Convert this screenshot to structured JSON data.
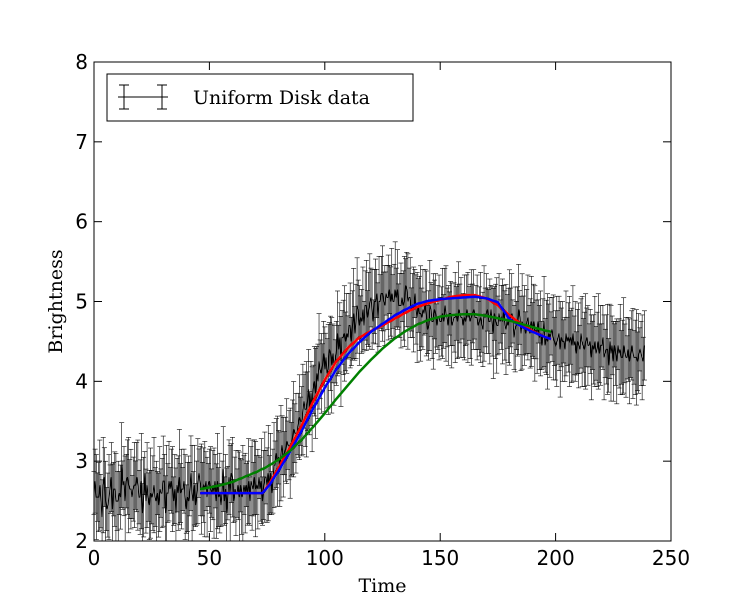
{
  "chart_data": {
    "type": "line",
    "title": "",
    "xlabel": "Time",
    "ylabel": "Brightness",
    "xlim": [
      0,
      250
    ],
    "ylim": [
      2,
      8
    ],
    "x_ticks": [
      "0",
      "50",
      "100",
      "150",
      "200",
      "250"
    ],
    "y_ticks": [
      "2",
      "3",
      "4",
      "5",
      "6",
      "7",
      "8"
    ],
    "grid": false,
    "legend": {
      "position": "top-left",
      "entries": [
        "Uniform Disk data"
      ]
    },
    "data_series": {
      "name": "Uniform Disk data",
      "color": "#000000",
      "style": "errorbar",
      "x_start": 0,
      "x_step": 0.5,
      "values": [
        2.6,
        2.75,
        2.55,
        2.55,
        2.55,
        2.7,
        2.5,
        2.3,
        2.7,
        2.8,
        2.5,
        2.4,
        2.45,
        2.55,
        2.65,
        2.8,
        2.4,
        2.65,
        2.65,
        2.5,
        2.5,
        2.5,
        2.6,
        2.55,
        2.95,
        2.7,
        2.75,
        2.5,
        2.75,
        2.8,
        2.7,
        2.65,
        2.65,
        2.55,
        2.65,
        2.7,
        2.7,
        2.8,
        2.7,
        2.55,
        2.55,
        2.75,
        2.35,
        2.55,
        2.85,
        2.5,
        2.7,
        2.55,
        2.45,
        2.6,
        2.55,
        2.6,
        2.7,
        2.55,
        2.5,
        2.6,
        2.45,
        2.65,
        2.6,
        2.6,
        2.75,
        2.75,
        2.35,
        2.6,
        2.6,
        2.75,
        2.65,
        2.75,
        2.65,
        2.5,
        2.65,
        2.35,
        2.7,
        2.6,
        2.8,
        2.6,
        2.65,
        2.65,
        2.75,
        2.55,
        2.4,
        2.55,
        2.5,
        2.65,
        2.85,
        2.6,
        2.5,
        2.7,
        2.45,
        2.6,
        2.75,
        2.85,
        2.75,
        2.65,
        2.65,
        2.7,
        2.65,
        2.75,
        2.55,
        2.7,
        2.75,
        2.65,
        2.6,
        2.7,
        2.6,
        2.75,
        2.5,
        2.75,
        2.55,
        2.6,
        2.45,
        2.6,
        2.9,
        2.5,
        2.65,
        2.35,
        2.6,
        2.8,
        2.6,
        2.85,
        2.8,
        2.5,
        2.65,
        2.6,
        2.6,
        2.7,
        2.55,
        2.7,
        2.55,
        2.6,
        2.7,
        2.6,
        2.7,
        2.6,
        2.75,
        2.5,
        2.75,
        2.7,
        2.65,
        2.8,
        2.65,
        2.7,
        2.65,
        2.8,
        2.65,
        2.75,
        2.5,
        2.7,
        2.8,
        2.8,
        2.7,
        2.85,
        2.7,
        2.85,
        2.6,
        2.75,
        2.95,
        2.95,
        3.1,
        3.0,
        3.05,
        2.9,
        3.1,
        3.2,
        3.05,
        3.1,
        3.15,
        3.25,
        3.2,
        3.2,
        3.1,
        3.15,
        3.3,
        3.4,
        3.35,
        3.35,
        3.35,
        3.45,
        3.55,
        3.5,
        3.5,
        3.65,
        3.75,
        3.65,
        3.65,
        3.75,
        3.9,
        3.6,
        3.85,
        3.65,
        3.9,
        4.0,
        3.85,
        4.1,
        4.0,
        4.25,
        4.15,
        4.1,
        4.2,
        4.35,
        4.15,
        4.3,
        4.1,
        4.15,
        4.4,
        4.35,
        4.2,
        4.35,
        4.2,
        4.25,
        4.35,
        4.6,
        4.4,
        4.55,
        4.25,
        4.55,
        4.55,
        4.6,
        4.5,
        4.6,
        4.55,
        4.7,
        4.7,
        4.5,
        4.7,
        4.85,
        4.6,
        4.75,
        4.95,
        4.9,
        4.7,
        4.8,
        4.75,
        4.9,
        4.7,
        4.95,
        4.95,
        4.8,
        4.9,
        5.0,
        5.05,
        4.9,
        4.75,
        5.0,
        5.0,
        5.1,
        4.8,
        5.0,
        5.0,
        5.1,
        5.1,
        5.0,
        4.95,
        5.1,
        5.05,
        5.05,
        5.15,
        5.0,
        5.1,
        5.0,
        5.0,
        5.15,
        5.05,
        5.15,
        4.95,
        4.95,
        4.95,
        5.05,
        4.95,
        5.0,
        5.2,
        5.15,
        5.0,
        5.05,
        5.05,
        4.9,
        4.95,
        4.9,
        5.1,
        4.9,
        4.8,
        4.95,
        4.85,
        4.85,
        4.8,
        4.9,
        4.85,
        5.0,
        4.85,
        4.65,
        4.7,
        4.95,
        4.9,
        4.75,
        4.75,
        4.9,
        4.85,
        4.7,
        4.8,
        4.8,
        4.75,
        4.75,
        4.85,
        4.75,
        4.95,
        4.85,
        4.8,
        4.7,
        4.85,
        4.85,
        4.7,
        4.75,
        4.8,
        4.8,
        4.85,
        4.75,
        4.9,
        4.85,
        4.8,
        4.8,
        4.7,
        4.8,
        4.75,
        4.9,
        4.8,
        4.85,
        4.75,
        4.8,
        4.85,
        4.9,
        4.8,
        4.8,
        4.8,
        4.7,
        4.75,
        4.8,
        4.7,
        4.65,
        4.85,
        4.8,
        4.85,
        4.9,
        4.75,
        4.75,
        4.9,
        4.75,
        4.6,
        4.85,
        4.75,
        4.7,
        4.7,
        4.85,
        4.75,
        4.8,
        4.75,
        4.9,
        4.7,
        4.65,
        4.75,
        4.7,
        4.8,
        4.8,
        4.85,
        4.75,
        4.55,
        4.65,
        4.7,
        4.75,
        4.9,
        4.8,
        4.6,
        4.75,
        4.7,
        4.7,
        4.6,
        4.75,
        4.8,
        4.65,
        4.6,
        4.75,
        4.65,
        4.75,
        4.6,
        4.65,
        4.6,
        4.75,
        4.55,
        4.6,
        4.45,
        4.6,
        4.75,
        4.45,
        4.55,
        4.5,
        4.6,
        4.55,
        4.6,
        4.65,
        4.55,
        4.5,
        4.45,
        4.5,
        4.55,
        4.6,
        4.4,
        4.55,
        4.5,
        4.5,
        4.4,
        4.6,
        4.5,
        4.55,
        4.5,
        4.55,
        4.45,
        4.6,
        4.45,
        4.5,
        4.35,
        4.5,
        4.45,
        4.4,
        4.6,
        4.5,
        4.45,
        4.4,
        4.5,
        4.55,
        4.45,
        4.45,
        4.5,
        4.3,
        4.45,
        4.4,
        4.5,
        4.35,
        4.4,
        4.5,
        4.35,
        4.45,
        4.45,
        4.55,
        4.3,
        4.35,
        4.4,
        4.4,
        4.2,
        4.5,
        4.35,
        4.45,
        4.25,
        4.45,
        4.35,
        4.25,
        4.45,
        4.35,
        4.4,
        4.3,
        4.3,
        4.45,
        4.35,
        4.3,
        4.3,
        4.4,
        4.25,
        4.35,
        4.45,
        4.35,
        4.3,
        4.3,
        4.3,
        4.25,
        4.35,
        4.4,
        4.35,
        4.3,
        4.25,
        4.45
      ],
      "error": 0.45
    },
    "fit_series": [
      {
        "color": "#ff0000",
        "x": [
          46,
          50,
          55,
          60,
          65,
          70,
          73,
          76,
          80,
          85,
          90,
          95,
          100,
          105,
          110,
          115,
          120,
          125,
          130,
          135,
          140,
          145,
          150,
          155,
          160,
          165,
          170,
          175,
          180,
          185,
          190,
          195,
          198
        ],
        "y": [
          2.6,
          2.6,
          2.6,
          2.6,
          2.6,
          2.6,
          2.6,
          2.72,
          2.92,
          3.18,
          3.45,
          3.75,
          4.02,
          4.25,
          4.42,
          4.55,
          4.63,
          4.7,
          4.78,
          4.86,
          4.93,
          4.98,
          5.02,
          5.06,
          5.08,
          5.08,
          5.04,
          4.95,
          4.83,
          4.72,
          4.63,
          4.56,
          4.53
        ]
      },
      {
        "color": "#0000ff",
        "x": [
          46,
          50,
          55,
          60,
          65,
          70,
          73,
          76,
          80,
          85,
          90,
          95,
          100,
          105,
          110,
          115,
          120,
          125,
          130,
          135,
          140,
          145,
          150,
          155,
          160,
          165,
          170,
          175,
          180,
          185,
          190,
          195,
          198
        ],
        "y": [
          2.6,
          2.6,
          2.6,
          2.6,
          2.6,
          2.6,
          2.6,
          2.7,
          2.88,
          3.12,
          3.38,
          3.66,
          3.92,
          4.15,
          4.34,
          4.49,
          4.62,
          4.72,
          4.82,
          4.9,
          4.97,
          5.01,
          5.03,
          5.04,
          5.05,
          5.06,
          5.04,
          4.99,
          4.78,
          4.69,
          4.62,
          4.56,
          4.53
        ]
      },
      {
        "color": "#008000",
        "x": [
          46,
          50,
          55,
          60,
          65,
          70,
          75,
          80,
          85,
          90,
          95,
          100,
          105,
          110,
          115,
          120,
          125,
          130,
          135,
          140,
          145,
          150,
          155,
          160,
          165,
          170,
          175,
          180,
          185,
          190,
          195,
          198
        ],
        "y": [
          2.65,
          2.67,
          2.7,
          2.74,
          2.8,
          2.86,
          2.93,
          3.02,
          3.13,
          3.27,
          3.43,
          3.6,
          3.78,
          3.95,
          4.12,
          4.27,
          4.41,
          4.53,
          4.63,
          4.71,
          4.77,
          4.81,
          4.83,
          4.84,
          4.84,
          4.82,
          4.79,
          4.76,
          4.72,
          4.68,
          4.64,
          4.62
        ]
      }
    ]
  }
}
